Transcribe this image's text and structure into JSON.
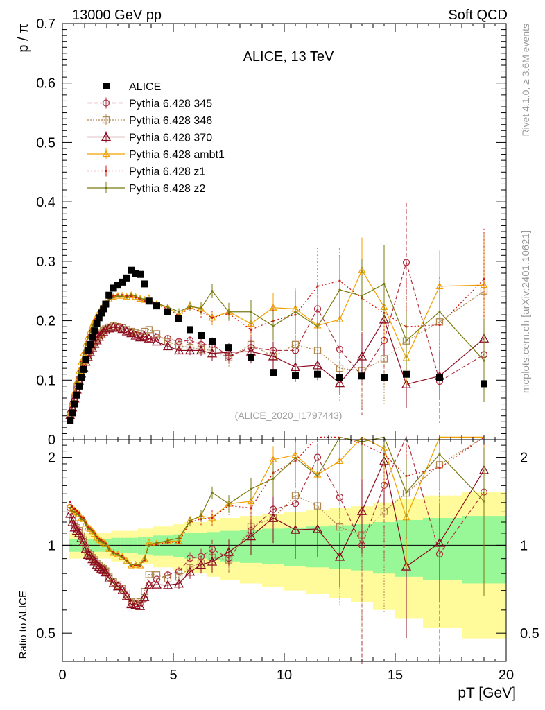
{
  "header": {
    "left": "13000 GeV pp",
    "right": "Soft QCD"
  },
  "side_text": {
    "rivet": "Rivet 4.1.0, ≥ 3.6M events",
    "mcplots": "mcplots.cern.ch [arXiv:2401.10621]"
  },
  "chart_data": {
    "type": "line",
    "title": "ALICE, 13 TeV",
    "analysis_tag": "(ALICE_2020_I1797443)",
    "ylabel_main": "p / π",
    "ylabel_ratio": "Ratio to ALICE",
    "xlabel": "pT [GeV]",
    "xlim": [
      0,
      20
    ],
    "ylim_main": [
      0,
      0.7
    ],
    "ylim_ratio": [
      0.4,
      2.3
    ],
    "x_ticks": [
      "0",
      "5",
      "10",
      "15",
      "20"
    ],
    "y_ticks_main": [
      "0",
      "0.1",
      "0.2",
      "0.3",
      "0.4",
      "0.5",
      "0.6",
      "0.7"
    ],
    "y_ticks_ratio": [
      "0.5",
      "1",
      "2"
    ],
    "data": {
      "name": "ALICE",
      "x": [
        0.35,
        0.45,
        0.55,
        0.65,
        0.75,
        0.85,
        0.95,
        1.05,
        1.15,
        1.25,
        1.35,
        1.45,
        1.55,
        1.65,
        1.75,
        1.85,
        1.95,
        2.1,
        2.3,
        2.5,
        2.7,
        2.9,
        3.1,
        3.3,
        3.5,
        3.7,
        3.9,
        4.25,
        4.75,
        5.25,
        5.75,
        6.25,
        6.75,
        7.5,
        8.5,
        9.5,
        10.5,
        11.5,
        12.5,
        13.5,
        14.5,
        15.5,
        17.0,
        19.0
      ],
      "y": [
        0.032,
        0.045,
        0.06,
        0.075,
        0.09,
        0.105,
        0.118,
        0.135,
        0.15,
        0.16,
        0.172,
        0.183,
        0.195,
        0.205,
        0.213,
        0.22,
        0.228,
        0.243,
        0.255,
        0.26,
        0.265,
        0.272,
        0.285,
        0.28,
        0.278,
        0.262,
        0.233,
        0.225,
        0.215,
        0.203,
        0.185,
        0.175,
        0.165,
        0.155,
        0.138,
        0.113,
        0.108,
        0.11,
        0.104,
        0.107,
        0.104,
        0.11,
        0.105,
        0.094
      ],
      "rel_err": [
        0.05,
        0.05,
        0.05,
        0.05,
        0.05,
        0.05,
        0.05,
        0.05,
        0.05,
        0.05,
        0.05,
        0.05,
        0.05,
        0.05,
        0.05,
        0.05,
        0.05,
        0.05,
        0.06,
        0.06,
        0.06,
        0.06,
        0.06,
        0.06,
        0.07,
        0.07,
        0.07,
        0.08,
        0.08,
        0.09,
        0.1,
        0.1,
        0.11,
        0.12,
        0.13,
        0.14,
        0.15,
        0.16,
        0.17,
        0.18,
        0.2,
        0.22,
        0.24,
        0.26
      ]
    },
    "series": [
      {
        "name": "Pythia 6.428 345",
        "color": "#b03040",
        "dash": "6,3",
        "marker": "circle",
        "x": [
          0.35,
          0.45,
          0.55,
          0.65,
          0.75,
          0.85,
          0.95,
          1.05,
          1.15,
          1.25,
          1.35,
          1.45,
          1.55,
          1.65,
          1.75,
          1.85,
          1.95,
          2.1,
          2.3,
          2.5,
          2.7,
          2.9,
          3.1,
          3.3,
          3.5,
          3.7,
          3.9,
          4.25,
          4.75,
          5.25,
          5.75,
          6.25,
          6.75,
          7.5,
          8.5,
          9.5,
          10.5,
          11.5,
          12.5,
          13.5,
          14.5,
          15.5,
          17.0,
          19.0
        ],
        "y": [
          0.043,
          0.055,
          0.07,
          0.085,
          0.1,
          0.112,
          0.122,
          0.132,
          0.14,
          0.148,
          0.155,
          0.162,
          0.168,
          0.174,
          0.178,
          0.182,
          0.185,
          0.188,
          0.19,
          0.189,
          0.186,
          0.182,
          0.18,
          0.177,
          0.175,
          0.172,
          0.17,
          0.172,
          0.17,
          0.165,
          0.167,
          0.16,
          0.16,
          0.14,
          0.155,
          0.15,
          0.15,
          0.22,
          0.152,
          0.107,
          0.167,
          0.298,
          0.098,
          0.143
        ],
        "err": [
          0.001,
          0.001,
          0.001,
          0.001,
          0.001,
          0.001,
          0.001,
          0.001,
          0.001,
          0.001,
          0.001,
          0.001,
          0.001,
          0.001,
          0.001,
          0.001,
          0.001,
          0.002,
          0.002,
          0.002,
          0.002,
          0.002,
          0.002,
          0.002,
          0.003,
          0.003,
          0.003,
          0.004,
          0.005,
          0.006,
          0.008,
          0.01,
          0.012,
          0.015,
          0.02,
          0.025,
          0.035,
          0.045,
          0.055,
          0.065,
          0.075,
          0.1,
          0.07,
          0.08
        ]
      },
      {
        "name": "Pythia 6.428 346",
        "color": "#b08850",
        "dash": "2,2",
        "marker": "square",
        "x": [
          0.35,
          0.45,
          0.55,
          0.65,
          0.75,
          0.85,
          0.95,
          1.05,
          1.15,
          1.25,
          1.35,
          1.45,
          1.55,
          1.65,
          1.75,
          1.85,
          1.95,
          2.1,
          2.3,
          2.5,
          2.7,
          2.9,
          3.1,
          3.3,
          3.5,
          3.7,
          3.9,
          4.25,
          4.75,
          5.25,
          5.75,
          6.25,
          6.75,
          7.5,
          8.5,
          9.5,
          10.5,
          11.5,
          12.5,
          13.5,
          14.5,
          15.5,
          17.0,
          19.0
        ],
        "y": [
          0.042,
          0.056,
          0.071,
          0.086,
          0.101,
          0.113,
          0.123,
          0.133,
          0.141,
          0.149,
          0.156,
          0.163,
          0.169,
          0.175,
          0.179,
          0.183,
          0.186,
          0.189,
          0.191,
          0.19,
          0.188,
          0.185,
          0.182,
          0.18,
          0.178,
          0.182,
          0.185,
          0.178,
          0.165,
          0.158,
          0.155,
          0.152,
          0.15,
          0.138,
          0.16,
          0.14,
          0.16,
          0.15,
          0.12,
          0.116,
          0.136,
          0.166,
          0.198,
          0.25
        ],
        "err": [
          0.001,
          0.001,
          0.001,
          0.001,
          0.001,
          0.001,
          0.001,
          0.001,
          0.001,
          0.001,
          0.001,
          0.001,
          0.001,
          0.001,
          0.001,
          0.001,
          0.001,
          0.002,
          0.002,
          0.002,
          0.002,
          0.002,
          0.002,
          0.002,
          0.003,
          0.003,
          0.003,
          0.004,
          0.005,
          0.006,
          0.008,
          0.01,
          0.012,
          0.015,
          0.02,
          0.025,
          0.035,
          0.045,
          0.055,
          0.065,
          0.075,
          0.08,
          0.07,
          0.1
        ]
      },
      {
        "name": "Pythia 6.428 370",
        "color": "#8b0a1e",
        "dash": "",
        "marker": "triangle",
        "x": [
          0.35,
          0.45,
          0.55,
          0.65,
          0.75,
          0.85,
          0.95,
          1.05,
          1.15,
          1.25,
          1.35,
          1.45,
          1.55,
          1.65,
          1.75,
          1.85,
          1.95,
          2.1,
          2.3,
          2.5,
          2.7,
          2.9,
          3.1,
          3.3,
          3.5,
          3.7,
          3.9,
          4.25,
          4.75,
          5.25,
          5.75,
          6.25,
          6.75,
          7.5,
          8.5,
          9.5,
          10.5,
          11.5,
          12.5,
          13.5,
          14.5,
          15.5,
          17.0,
          19.0
        ],
        "y": [
          0.041,
          0.054,
          0.069,
          0.084,
          0.099,
          0.111,
          0.121,
          0.131,
          0.139,
          0.147,
          0.154,
          0.161,
          0.167,
          0.173,
          0.177,
          0.181,
          0.184,
          0.187,
          0.189,
          0.188,
          0.186,
          0.182,
          0.179,
          0.175,
          0.172,
          0.174,
          0.17,
          0.165,
          0.157,
          0.15,
          0.15,
          0.15,
          0.145,
          0.147,
          0.148,
          0.14,
          0.122,
          0.125,
          0.095,
          0.14,
          0.202,
          0.093,
          0.107,
          0.17
        ],
        "err": [
          0.001,
          0.001,
          0.001,
          0.001,
          0.001,
          0.001,
          0.001,
          0.001,
          0.001,
          0.001,
          0.001,
          0.001,
          0.001,
          0.001,
          0.001,
          0.001,
          0.001,
          0.002,
          0.002,
          0.002,
          0.002,
          0.002,
          0.002,
          0.002,
          0.003,
          0.003,
          0.003,
          0.004,
          0.005,
          0.006,
          0.008,
          0.01,
          0.012,
          0.015,
          0.02,
          0.025,
          0.025,
          0.025,
          0.02,
          0.04,
          0.06,
          0.04,
          0.04,
          0.06
        ]
      },
      {
        "name": "Pythia 6.428 ambt1",
        "color": "#f0a000",
        "dash": "",
        "marker": "triangle-small",
        "x": [
          0.35,
          0.45,
          0.55,
          0.65,
          0.75,
          0.85,
          0.95,
          1.05,
          1.15,
          1.25,
          1.35,
          1.45,
          1.55,
          1.65,
          1.75,
          1.85,
          1.95,
          2.1,
          2.3,
          2.5,
          2.7,
          2.9,
          3.1,
          3.3,
          3.5,
          3.7,
          3.9,
          4.25,
          4.75,
          5.25,
          5.75,
          6.25,
          6.75,
          7.5,
          8.5,
          9.5,
          10.5,
          11.5,
          12.5,
          13.5,
          14.5,
          15.5,
          17.0,
          19.0
        ],
        "y": [
          0.044,
          0.06,
          0.079,
          0.097,
          0.115,
          0.13,
          0.145,
          0.16,
          0.172,
          0.182,
          0.192,
          0.2,
          0.207,
          0.214,
          0.22,
          0.225,
          0.23,
          0.236,
          0.24,
          0.242,
          0.242,
          0.24,
          0.243,
          0.24,
          0.237,
          0.235,
          0.238,
          0.228,
          0.222,
          0.21,
          0.225,
          0.22,
          0.205,
          0.215,
          0.195,
          0.222,
          0.22,
          0.192,
          0.202,
          0.285,
          0.223,
          0.137,
          0.258,
          0.26
        ],
        "err": [
          0.001,
          0.001,
          0.001,
          0.001,
          0.001,
          0.001,
          0.001,
          0.001,
          0.001,
          0.001,
          0.001,
          0.001,
          0.001,
          0.001,
          0.001,
          0.001,
          0.001,
          0.002,
          0.002,
          0.002,
          0.002,
          0.002,
          0.002,
          0.002,
          0.003,
          0.003,
          0.003,
          0.004,
          0.005,
          0.006,
          0.008,
          0.01,
          0.012,
          0.015,
          0.02,
          0.025,
          0.035,
          0.045,
          0.055,
          0.055,
          0.06,
          0.045,
          0.06,
          0.08
        ]
      },
      {
        "name": "Pythia 6.428 z1",
        "color": "#d01010",
        "dash": "2,3",
        "marker": "dot",
        "x": [
          0.35,
          0.45,
          0.55,
          0.65,
          0.75,
          0.85,
          0.95,
          1.05,
          1.15,
          1.25,
          1.35,
          1.45,
          1.55,
          1.65,
          1.75,
          1.85,
          1.95,
          2.1,
          2.3,
          2.5,
          2.7,
          2.9,
          3.1,
          3.3,
          3.5,
          3.7,
          3.9,
          4.25,
          4.75,
          5.25,
          5.75,
          6.25,
          6.75,
          7.5,
          8.5,
          9.5,
          10.5,
          11.5,
          12.5,
          13.5,
          14.5,
          15.5,
          17.0,
          19.0
        ],
        "y": [
          0.045,
          0.061,
          0.08,
          0.098,
          0.116,
          0.131,
          0.146,
          0.161,
          0.173,
          0.183,
          0.193,
          0.201,
          0.208,
          0.215,
          0.221,
          0.226,
          0.231,
          0.237,
          0.241,
          0.243,
          0.243,
          0.241,
          0.242,
          0.239,
          0.236,
          0.233,
          0.232,
          0.227,
          0.22,
          0.208,
          0.222,
          0.215,
          0.205,
          0.212,
          0.185,
          0.2,
          0.21,
          0.258,
          0.267,
          0.238,
          0.213,
          0.19,
          0.193,
          0.27
        ],
        "err": [
          0.001,
          0.001,
          0.001,
          0.001,
          0.001,
          0.001,
          0.001,
          0.001,
          0.001,
          0.001,
          0.001,
          0.001,
          0.001,
          0.001,
          0.001,
          0.001,
          0.001,
          0.002,
          0.002,
          0.002,
          0.002,
          0.002,
          0.002,
          0.002,
          0.003,
          0.003,
          0.003,
          0.004,
          0.005,
          0.006,
          0.008,
          0.01,
          0.012,
          0.015,
          0.02,
          0.025,
          0.035,
          0.065,
          0.055,
          0.065,
          0.06,
          0.075,
          0.08,
          0.085
        ]
      },
      {
        "name": "Pythia 6.428 z2",
        "color": "#7a7a10",
        "dash": "",
        "marker": "dot",
        "x": [
          0.35,
          0.45,
          0.55,
          0.65,
          0.75,
          0.85,
          0.95,
          1.05,
          1.15,
          1.25,
          1.35,
          1.45,
          1.55,
          1.65,
          1.75,
          1.85,
          1.95,
          2.1,
          2.3,
          2.5,
          2.7,
          2.9,
          3.1,
          3.3,
          3.5,
          3.7,
          3.9,
          4.25,
          4.75,
          5.25,
          5.75,
          6.25,
          6.75,
          7.5,
          8.5,
          9.5,
          10.5,
          11.5,
          12.5,
          13.5,
          14.5,
          15.5,
          17.0,
          19.0
        ],
        "y": [
          0.043,
          0.059,
          0.078,
          0.096,
          0.114,
          0.129,
          0.144,
          0.159,
          0.171,
          0.181,
          0.191,
          0.199,
          0.206,
          0.213,
          0.219,
          0.224,
          0.229,
          0.235,
          0.239,
          0.241,
          0.241,
          0.239,
          0.244,
          0.241,
          0.238,
          0.236,
          0.234,
          0.229,
          0.223,
          0.215,
          0.224,
          0.221,
          0.25,
          0.215,
          0.215,
          0.191,
          0.215,
          0.19,
          0.252,
          0.242,
          0.262,
          0.167,
          0.215,
          0.133
        ],
        "err": [
          0.001,
          0.001,
          0.001,
          0.001,
          0.001,
          0.001,
          0.001,
          0.001,
          0.001,
          0.001,
          0.001,
          0.001,
          0.001,
          0.001,
          0.001,
          0.001,
          0.001,
          0.002,
          0.002,
          0.002,
          0.002,
          0.002,
          0.002,
          0.002,
          0.003,
          0.003,
          0.003,
          0.004,
          0.005,
          0.006,
          0.008,
          0.01,
          0.012,
          0.015,
          0.02,
          0.025,
          0.035,
          0.045,
          0.055,
          0.06,
          0.065,
          0.05,
          0.05,
          0.07
        ]
      }
    ]
  }
}
